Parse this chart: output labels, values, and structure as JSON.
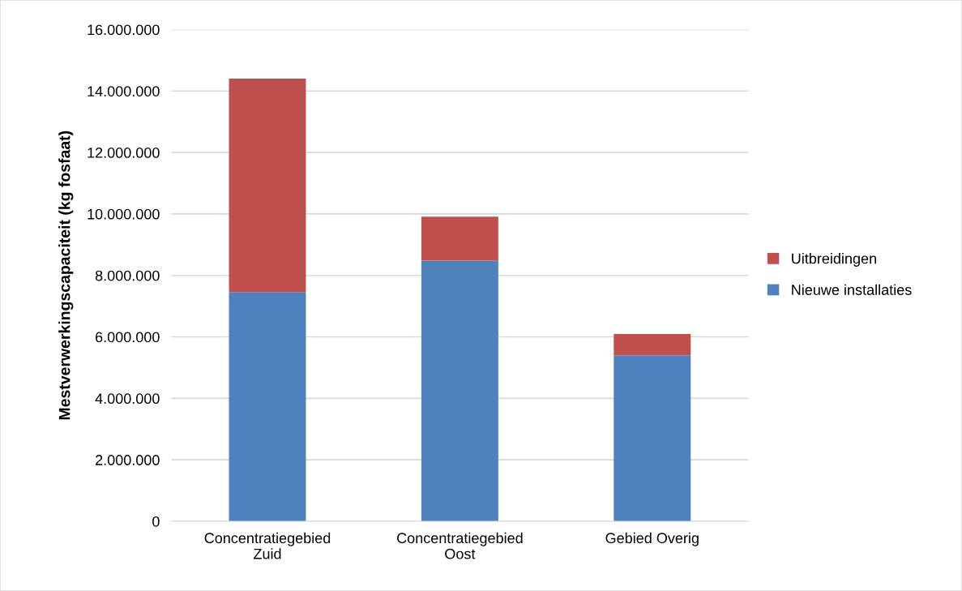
{
  "chart_data": {
    "type": "bar",
    "stacked": true,
    "categories": [
      "Concentratiegebied\nZuid",
      "Concentratiegebied\nOost",
      "Gebied Overig"
    ],
    "ylabel": "Mestverwerkingscapaciteit (kg fosfaat)",
    "series": [
      {
        "name": "Nieuwe installaties",
        "color": "#4f81bd",
        "values": [
          7460000,
          8480000,
          5400000
        ]
      },
      {
        "name": "Uitbreidingen",
        "color": "#c0504d",
        "values": [
          6940000,
          1430000,
          690000
        ]
      }
    ],
    "ylim": [
      0,
      16000000
    ],
    "yticks": [
      {
        "value": 0,
        "label": "0"
      },
      {
        "value": 2000000,
        "label": "2.000.000"
      },
      {
        "value": 4000000,
        "label": "4.000.000"
      },
      {
        "value": 6000000,
        "label": "6.000.000"
      },
      {
        "value": 8000000,
        "label": "8.000.000"
      },
      {
        "value": 10000000,
        "label": "10.000.000"
      },
      {
        "value": 12000000,
        "label": "12.000.000"
      },
      {
        "value": 14000000,
        "label": "14.000.000"
      },
      {
        "value": 16000000,
        "label": "16.000.000"
      }
    ],
    "grid": "y",
    "legend": "right"
  }
}
